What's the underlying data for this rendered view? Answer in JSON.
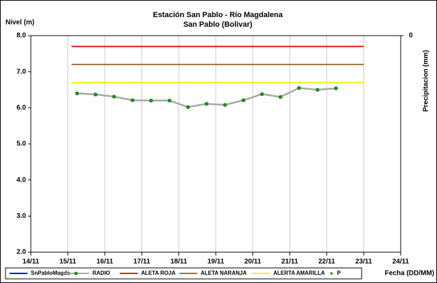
{
  "chart_data": {
    "type": "line",
    "title": "Estación San Pablo - Río Magdalena",
    "subtitle": "San Pablo (Bolivar)",
    "y_label": "Nivel (m)",
    "y2_label": "Precipitacion (mm)",
    "x_label": "Fecha (DD/MM)",
    "xlim": [
      14,
      24
    ],
    "xticks": [
      {
        "value": 14,
        "label": "14/11"
      },
      {
        "value": 15,
        "label": "15/11"
      },
      {
        "value": 16,
        "label": "16/11"
      },
      {
        "value": 17,
        "label": "17/11"
      },
      {
        "value": 18,
        "label": "18/11"
      },
      {
        "value": 19,
        "label": "19/11"
      },
      {
        "value": 20,
        "label": "20/11"
      },
      {
        "value": 21,
        "label": "21/11"
      },
      {
        "value": 22,
        "label": "22/11"
      },
      {
        "value": 23,
        "label": "23/11"
      },
      {
        "value": 24,
        "label": "24/11"
      }
    ],
    "ylim": [
      2,
      8
    ],
    "yticks": [
      {
        "value": 2,
        "label": "2.0"
      },
      {
        "value": 3,
        "label": "3.0"
      },
      {
        "value": 4,
        "label": "4.0"
      },
      {
        "value": 5,
        "label": "5.0"
      },
      {
        "value": 6,
        "label": "6.0"
      },
      {
        "value": 7,
        "label": "7.0"
      },
      {
        "value": 8,
        "label": "8.0"
      }
    ],
    "y2lim": [
      0,
      1
    ],
    "y2_inverted": true,
    "y2ticks": [
      0
    ],
    "grid": "x",
    "legend": "bottom",
    "series": [
      {
        "name": "SnPabloMagda",
        "color": "#0000ff",
        "x": [],
        "values": []
      },
      {
        "name": "RADIO",
        "color": "#a6a6a6",
        "marker_color": "#1e8c1e",
        "x": [
          15.25,
          15.75,
          16.25,
          16.75,
          17.25,
          17.75,
          18.25,
          18.75,
          19.25,
          19.75,
          20.25,
          20.75,
          21.25,
          21.75,
          22.25
        ],
        "values": [
          6.4,
          6.37,
          6.31,
          6.21,
          6.2,
          6.2,
          6.02,
          6.11,
          6.08,
          6.21,
          6.38,
          6.3,
          6.55,
          6.5,
          6.54
        ]
      },
      {
        "name": "ALETA ROJA",
        "color": "#e0201a",
        "x": [
          15.1,
          23
        ],
        "values": [
          7.7,
          7.7
        ]
      },
      {
        "name": "ALETA NARANJA",
        "color": "#a0703a",
        "x": [
          15.1,
          23
        ],
        "values": [
          7.2,
          7.2
        ]
      },
      {
        "name": "ALERTA AMARILLA",
        "color": "#f2f200",
        "x": [
          15.1,
          23
        ],
        "values": [
          6.7,
          6.7
        ]
      },
      {
        "name": "P",
        "color": "#1e8c1e",
        "axis": "y2",
        "x": [],
        "values": []
      }
    ]
  }
}
